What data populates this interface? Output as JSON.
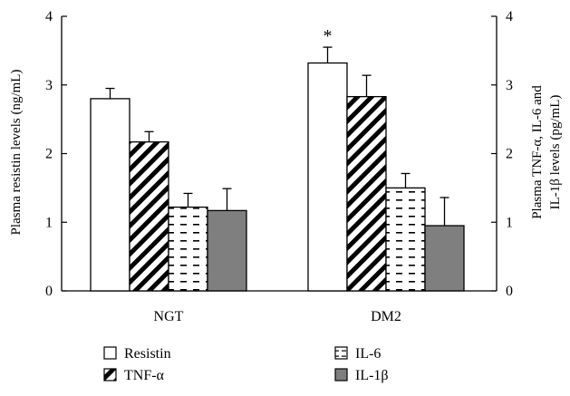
{
  "chart_data": {
    "type": "bar",
    "categories": [
      "NGT",
      "DM2"
    ],
    "series": [
      {
        "name": "Resistin",
        "axis": "left",
        "values": [
          2.8,
          3.32
        ],
        "errors": [
          0.15,
          0.23
        ]
      },
      {
        "name": "TNF-α",
        "axis": "right",
        "values": [
          2.17,
          2.83
        ],
        "errors": [
          0.15,
          0.31
        ]
      },
      {
        "name": "IL-6",
        "axis": "right",
        "values": [
          1.22,
          1.5
        ],
        "errors": [
          0.2,
          0.21
        ]
      },
      {
        "name": "IL-1β",
        "axis": "right",
        "values": [
          1.17,
          0.95
        ],
        "errors": [
          0.32,
          0.41
        ]
      }
    ],
    "ylabel_left": "Plasma resistin levels (ng/mL)",
    "ylabel_right_line1": "Plasma TNF-α, IL-6 and",
    "ylabel_right_line2": "IL-1β levels (pg/mL)",
    "ylim_left": [
      0,
      4
    ],
    "ylim_right": [
      0,
      4
    ],
    "yticks_left": [
      "0",
      "1",
      "2",
      "3",
      "4"
    ],
    "yticks_right": [
      "0",
      "1",
      "2",
      "3",
      "4"
    ],
    "annotation": "*",
    "annotation_target": {
      "category": "DM2",
      "series": "Resistin"
    },
    "legend_placement": "bottom",
    "grid": false,
    "series_styles": {
      "Resistin": "white",
      "TNF-α": "diagonal-hatch",
      "IL-6": "dashes",
      "IL-1β": "#7f7f7f"
    }
  }
}
